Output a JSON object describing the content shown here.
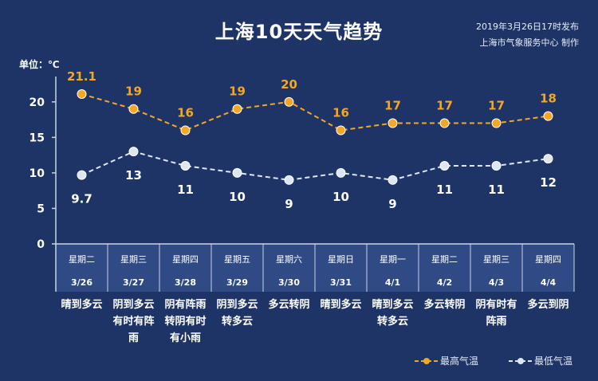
{
  "header": {
    "title": "上海10天天气趋势",
    "issue_line1": "2019年3月26日17时发布",
    "issue_line2": "上海市气象服务中心  制作"
  },
  "chart_data": {
    "type": "line",
    "ylabel": "单位：℃",
    "ylim": [
      0,
      22
    ],
    "yticks": [
      0,
      5,
      10,
      15,
      20
    ],
    "categories": [
      {
        "weekday": "星期二",
        "date": "3/26",
        "weather": [
          "晴到多云"
        ]
      },
      {
        "weekday": "星期三",
        "date": "3/27",
        "weather": [
          "阴到多云",
          "有时有阵",
          "雨"
        ]
      },
      {
        "weekday": "星期四",
        "date": "3/28",
        "weather": [
          "阴有阵雨",
          "转阴有时",
          "有小雨"
        ]
      },
      {
        "weekday": "星期五",
        "date": "3/29",
        "weather": [
          "阴到多云",
          "转多云"
        ]
      },
      {
        "weekday": "星期六",
        "date": "3/30",
        "weather": [
          "多云转阴"
        ]
      },
      {
        "weekday": "星期日",
        "date": "3/31",
        "weather": [
          "晴到多云"
        ]
      },
      {
        "weekday": "星期一",
        "date": "4/1",
        "weather": [
          "晴到多云",
          "转多云"
        ]
      },
      {
        "weekday": "星期二",
        "date": "4/2",
        "weather": [
          "多云转阴"
        ]
      },
      {
        "weekday": "星期三",
        "date": "4/3",
        "weather": [
          "阴有时有",
          "阵雨"
        ]
      },
      {
        "weekday": "星期四",
        "date": "4/4",
        "weather": [
          "多云到阴"
        ]
      }
    ],
    "series": [
      {
        "name": "最高气温",
        "color": "#f5a623",
        "values": [
          21.1,
          19,
          16,
          19,
          20,
          16,
          17,
          17,
          17,
          18
        ],
        "labels": [
          "21.1",
          "19",
          "16",
          "19",
          "20",
          "16",
          "17",
          "17",
          "17",
          "18"
        ]
      },
      {
        "name": "最低气温",
        "color": "#dde6f5",
        "values": [
          9.7,
          13,
          11,
          10,
          9,
          10,
          9,
          11,
          11,
          12
        ],
        "labels": [
          "9.7",
          "13",
          "11",
          "10",
          "9",
          "10",
          "9",
          "11",
          "11",
          "12"
        ]
      }
    ],
    "legend_position": "bottom-right",
    "grid": false
  },
  "colors": {
    "background": "#1e3466",
    "date_band": "#2f4a85",
    "axis": "#c9d3e6"
  }
}
